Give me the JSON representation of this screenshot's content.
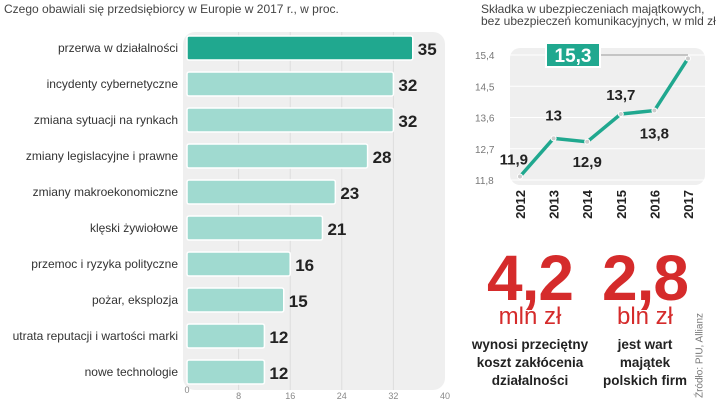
{
  "chart_data": [
    {
      "type": "bar",
      "orientation": "horizontal",
      "title": "Czego obawiali się przedsiębiorcy w Europie w 2017 r., w proc.",
      "categories": [
        "przerwa w działalności",
        "incydenty cybernetyczne",
        "zmiana sytuacji na rynkach",
        "zmiany legislacyjne i prawne",
        "zmiany makroekonomiczne",
        "klęski żywiołowe",
        "przemoc i ryzyka polityczne",
        "pożar, eksplozja",
        "utrata reputacji i wartości marki",
        "nowe technologie"
      ],
      "values": [
        35,
        32,
        32,
        28,
        23,
        21,
        16,
        15,
        12,
        12
      ],
      "xlim": [
        0,
        40
      ],
      "xticks": [
        0,
        8,
        16,
        24,
        32,
        40
      ],
      "grid": true,
      "colors": {
        "highlight": "#20a88f",
        "default": "#a0dad0"
      }
    },
    {
      "type": "line",
      "title": "Składka w ubezpieczeniach majątkowych, bez ubezpieczeń komunikacyjnych, w mld zł",
      "x": [
        "2012",
        "2013",
        "2014",
        "2015",
        "2016",
        "2017"
      ],
      "values": [
        11.9,
        13,
        12.9,
        13.7,
        13.8,
        15.3
      ],
      "labels": [
        "11,9",
        "13",
        "12,9",
        "13,7",
        "13,8",
        "15,3"
      ],
      "ylim": [
        11.8,
        15.4
      ],
      "yticks": [
        "11,8",
        "12,7",
        "13,6",
        "14,5",
        "15,4"
      ],
      "grid": true,
      "color": "#20a88f"
    }
  ],
  "stats": [
    {
      "value": "4,2",
      "unit": "mln zł",
      "lines": [
        "wynosi przeciętny",
        "koszt zakłócenia",
        "działalności"
      ]
    },
    {
      "value": "2,8",
      "unit": "bln zł",
      "lines": [
        "jest wart",
        "majątek",
        "polskich firm"
      ]
    }
  ],
  "source": "Źródło: PIU, Allianz"
}
